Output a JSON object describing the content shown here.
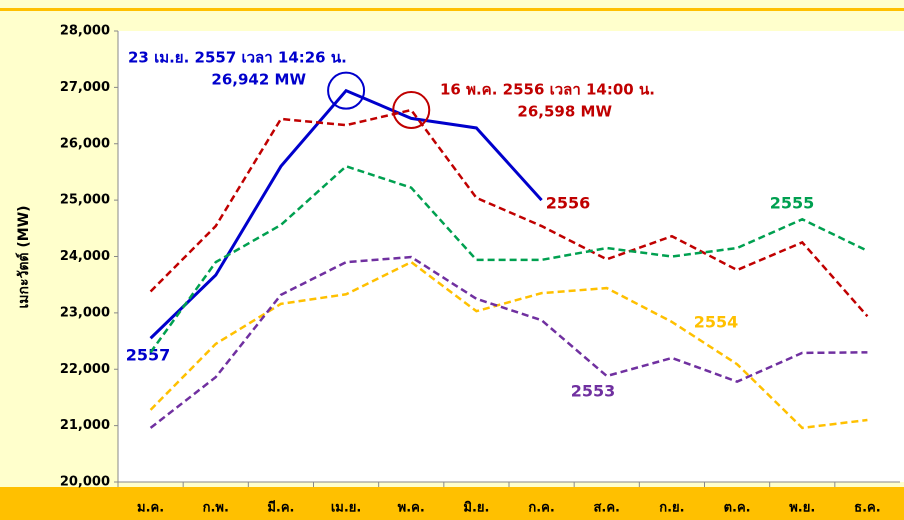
{
  "chart_data": {
    "type": "line",
    "y_label": "เมกะวัตต์ (MW)",
    "categories": [
      "ม.ค.",
      "ก.พ.",
      "มี.ค.",
      "เม.ย.",
      "พ.ค.",
      "มิ.ย.",
      "ก.ค.",
      "ส.ค.",
      "ก.ย.",
      "ต.ค.",
      "พ.ย.",
      "ธ.ค."
    ],
    "ylim": [
      20000,
      28000
    ],
    "yticks": [
      {
        "value": 20000,
        "label": "20,000"
      },
      {
        "value": 21000,
        "label": "21,000"
      },
      {
        "value": 22000,
        "label": "22,000"
      },
      {
        "value": 23000,
        "label": "23,000"
      },
      {
        "value": 24000,
        "label": "24,000"
      },
      {
        "value": 25000,
        "label": "25,000"
      },
      {
        "value": 26000,
        "label": "26,000"
      },
      {
        "value": 27000,
        "label": "27,000"
      },
      {
        "value": 28000,
        "label": "28,000"
      }
    ],
    "series": [
      {
        "name": "2557",
        "color": "#0000cc",
        "line_style": "solid",
        "values": [
          22550,
          23670,
          25600,
          26942,
          26450,
          26280,
          25000,
          null,
          null,
          null,
          null,
          null
        ]
      },
      {
        "name": "2556",
        "color": "#c00000",
        "line_style": "dashed",
        "values": [
          23380,
          24540,
          26440,
          26330,
          26598,
          25040,
          24540,
          23950,
          24360,
          23760,
          24250,
          22940
        ]
      },
      {
        "name": "2555",
        "color": "#00a050",
        "line_style": "dashed",
        "values": [
          22300,
          23900,
          24560,
          25600,
          25220,
          23940,
          23940,
          24150,
          24000,
          24150,
          24660,
          24100
        ]
      },
      {
        "name": "2554",
        "color": "#ffc000",
        "line_style": "dashed",
        "values": [
          21280,
          22450,
          23160,
          23330,
          23900,
          23030,
          23350,
          23440,
          22840,
          22090,
          20960,
          21100
        ]
      },
      {
        "name": "2553",
        "color": "#7030a0",
        "line_style": "dashed",
        "values": [
          20960,
          21860,
          23320,
          23900,
          23990,
          23250,
          22870,
          21880,
          22200,
          21780,
          22290,
          22300
        ]
      }
    ],
    "annotations": [
      {
        "lines": [
          "23 เม.ย. 2557  เวลา 14:26 น.",
          "26,942  MW"
        ],
        "color": "#0000cc"
      },
      {
        "lines": [
          "16 พ.ค. 2556  เวลา 14:00 น.",
          "26,598 MW"
        ],
        "color": "#c00000"
      }
    ]
  }
}
